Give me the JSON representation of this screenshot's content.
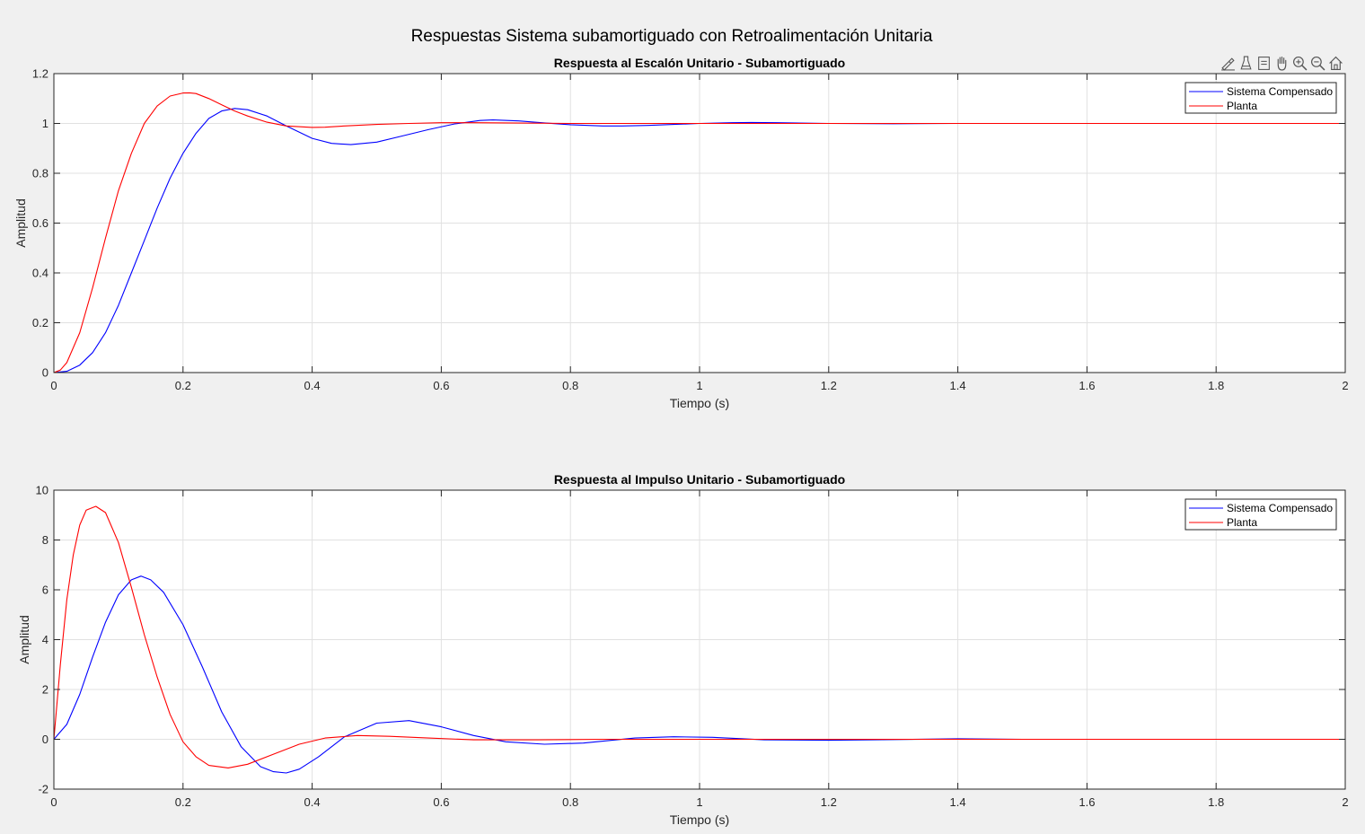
{
  "figure": {
    "sgtitle": "Respuestas Sistema subamortiguado con Retroalimentación Unitaria",
    "toolbar": [
      {
        "name": "brush-icon"
      },
      {
        "name": "data-tips-icon"
      },
      {
        "name": "rotate-icon"
      },
      {
        "name": "pan-icon"
      },
      {
        "name": "zoom-in-icon"
      },
      {
        "name": "zoom-out-icon"
      },
      {
        "name": "home-icon"
      }
    ]
  },
  "colors": {
    "compensado": "#0000ff",
    "planta": "#ff0000",
    "grid": "#e1e1e1",
    "axis": "#262626"
  },
  "chart_data": [
    {
      "type": "line",
      "title": "Respuesta al Escalón Unitario - Subamortiguado",
      "xlabel": "Tiempo (s)",
      "ylabel": "Amplitud",
      "xlim": [
        0,
        2
      ],
      "ylim": [
        0,
        1.2
      ],
      "xticks": [
        0,
        0.2,
        0.4,
        0.6,
        0.8,
        1,
        1.2,
        1.4,
        1.6,
        1.8,
        2
      ],
      "xtick_labels": [
        "0",
        "0.2",
        "0.4",
        "0.6",
        "0.8",
        "1",
        "1.2",
        "1.4",
        "1.6",
        "1.8",
        "2"
      ],
      "yticks": [
        0,
        0.2,
        0.4,
        0.6,
        0.8,
        1,
        1.2
      ],
      "ytick_labels": [
        "0",
        "0.2",
        "0.4",
        "0.6",
        "0.8",
        "1",
        "1.2"
      ],
      "grid": true,
      "legend_position": "top-right",
      "series": [
        {
          "name": "Sistema Compensado",
          "color": "#0000ff",
          "x": [
            0,
            0.02,
            0.04,
            0.06,
            0.08,
            0.1,
            0.12,
            0.14,
            0.16,
            0.18,
            0.2,
            0.22,
            0.24,
            0.26,
            0.28,
            0.3,
            0.33,
            0.36,
            0.4,
            0.43,
            0.46,
            0.5,
            0.54,
            0.58,
            0.62,
            0.66,
            0.68,
            0.72,
            0.76,
            0.8,
            0.85,
            0.88,
            0.92,
            0.96,
            1.0,
            1.05,
            1.08,
            1.12,
            1.2,
            1.3,
            1.4,
            1.6,
            1.8,
            2.0
          ],
          "y": [
            0,
            0.005,
            0.03,
            0.08,
            0.16,
            0.27,
            0.4,
            0.53,
            0.66,
            0.78,
            0.88,
            0.96,
            1.02,
            1.05,
            1.06,
            1.055,
            1.03,
            0.99,
            0.94,
            0.92,
            0.915,
            0.925,
            0.95,
            0.975,
            0.998,
            1.012,
            1.014,
            1.01,
            1.002,
            0.995,
            0.99,
            0.99,
            0.992,
            0.996,
            1.0,
            1.003,
            1.004,
            1.003,
            1.0,
            0.999,
            1.0,
            1.0,
            1.0,
            1.0
          ]
        },
        {
          "name": "Planta",
          "color": "#ff0000",
          "x": [
            0,
            0.01,
            0.02,
            0.04,
            0.06,
            0.08,
            0.1,
            0.12,
            0.14,
            0.16,
            0.18,
            0.2,
            0.21,
            0.22,
            0.24,
            0.26,
            0.28,
            0.3,
            0.33,
            0.36,
            0.4,
            0.42,
            0.45,
            0.5,
            0.55,
            0.6,
            0.65,
            0.7,
            0.8,
            0.9,
            1.0,
            1.2,
            1.5,
            1.8,
            2.0
          ],
          "y": [
            0,
            0.01,
            0.04,
            0.16,
            0.34,
            0.54,
            0.73,
            0.88,
            1.0,
            1.07,
            1.11,
            1.122,
            1.123,
            1.12,
            1.1,
            1.075,
            1.05,
            1.03,
            1.005,
            0.99,
            0.984,
            0.985,
            0.99,
            0.996,
            1.0,
            1.003,
            1.003,
            1.002,
            1.0,
            1.0,
            1.0,
            1.0,
            1.0,
            1.0,
            1.0
          ]
        }
      ]
    },
    {
      "type": "line",
      "title": "Respuesta al Impulso Unitario  - Subamortiguado",
      "xlabel": "Tiempo (s)",
      "ylabel": "Amplitud",
      "xlim": [
        0,
        2
      ],
      "ylim": [
        -2,
        10
      ],
      "xticks": [
        0,
        0.2,
        0.4,
        0.6,
        0.8,
        1,
        1.2,
        1.4,
        1.6,
        1.8,
        2
      ],
      "xtick_labels": [
        "0",
        "0.2",
        "0.4",
        "0.6",
        "0.8",
        "1",
        "1.2",
        "1.4",
        "1.6",
        "1.8",
        "2"
      ],
      "yticks": [
        -2,
        0,
        2,
        4,
        6,
        8,
        10
      ],
      "ytick_labels": [
        "-2",
        "0",
        "2",
        "4",
        "6",
        "8",
        "10"
      ],
      "grid": true,
      "legend_position": "top-right",
      "series": [
        {
          "name": "Sistema Compensado",
          "color": "#0000ff",
          "x": [
            0,
            0.02,
            0.04,
            0.06,
            0.08,
            0.1,
            0.12,
            0.135,
            0.15,
            0.17,
            0.2,
            0.23,
            0.26,
            0.29,
            0.32,
            0.34,
            0.36,
            0.38,
            0.41,
            0.45,
            0.5,
            0.55,
            0.6,
            0.65,
            0.7,
            0.76,
            0.82,
            0.9,
            0.96,
            1.02,
            1.1,
            1.2,
            1.3,
            1.4,
            1.5,
            1.6,
            1.8,
            2.0
          ],
          "y": [
            0,
            0.6,
            1.8,
            3.3,
            4.7,
            5.8,
            6.4,
            6.55,
            6.4,
            5.9,
            4.6,
            2.9,
            1.1,
            -0.3,
            -1.1,
            -1.3,
            -1.35,
            -1.2,
            -0.7,
            0.1,
            0.65,
            0.75,
            0.5,
            0.15,
            -0.1,
            -0.2,
            -0.15,
            0.05,
            0.1,
            0.08,
            -0.02,
            -0.04,
            -0.01,
            0.02,
            0.0,
            0.0,
            0.0,
            0.0
          ]
        },
        {
          "name": "Planta",
          "color": "#ff0000",
          "x": [
            0,
            0.01,
            0.02,
            0.03,
            0.04,
            0.05,
            0.065,
            0.08,
            0.1,
            0.12,
            0.14,
            0.16,
            0.18,
            0.2,
            0.22,
            0.24,
            0.27,
            0.3,
            0.34,
            0.38,
            0.42,
            0.47,
            0.52,
            0.58,
            0.65,
            0.75,
            0.85,
            1.0,
            1.2,
            1.5,
            2.0
          ],
          "y": [
            0,
            3.0,
            5.6,
            7.4,
            8.6,
            9.2,
            9.35,
            9.1,
            7.9,
            6.1,
            4.2,
            2.5,
            1.0,
            -0.1,
            -0.7,
            -1.05,
            -1.15,
            -1.0,
            -0.6,
            -0.2,
            0.05,
            0.15,
            0.12,
            0.05,
            -0.02,
            -0.02,
            0.0,
            0.0,
            0.0,
            0.0,
            0.0
          ]
        }
      ]
    }
  ]
}
